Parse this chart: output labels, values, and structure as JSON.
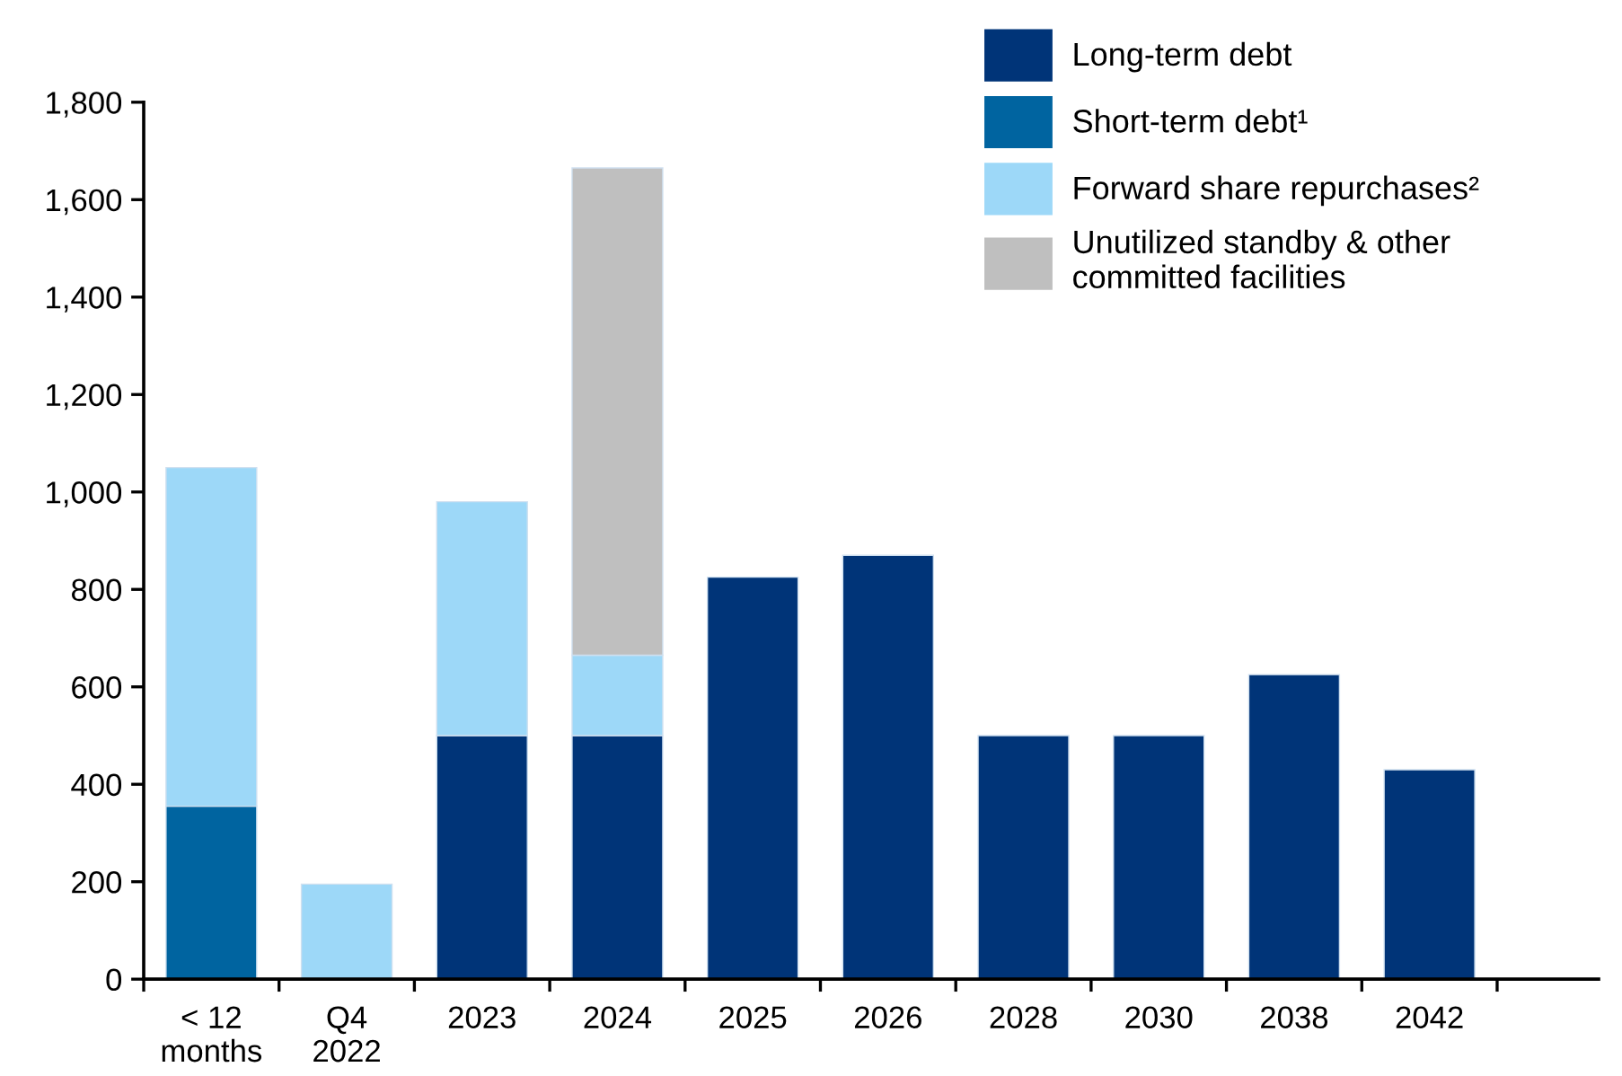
{
  "chart_data": {
    "type": "bar",
    "stacked": true,
    "categories": [
      "< 12\nmonths",
      "Q4\n2022",
      "2023",
      "2024",
      "2025",
      "2026",
      "2028",
      "2030",
      "2038",
      "2042"
    ],
    "series": [
      {
        "name": "Long-term debt",
        "color": "#003478",
        "values": [
          null,
          null,
          500,
          500,
          825,
          870,
          500,
          500,
          625,
          430
        ]
      },
      {
        "name": "Short-term debt¹",
        "color": "#0064a0",
        "values": [
          355,
          null,
          null,
          null,
          null,
          null,
          null,
          null,
          null,
          null
        ]
      },
      {
        "name": "Forward share repurchases²",
        "color": "#9dd8f8",
        "values": [
          695,
          195,
          480,
          165,
          null,
          null,
          null,
          null,
          null,
          null
        ]
      },
      {
        "name": "Unutilized standby & other\ncommitted facilities",
        "color": "#bfbfbf",
        "values": [
          null,
          null,
          null,
          1000,
          null,
          null,
          null,
          null,
          null,
          null
        ]
      }
    ],
    "ylim": [
      0,
      1800
    ],
    "yticks": [
      0,
      {
        "value": 200,
        "label": "200"
      },
      {
        "value": 400,
        "label": "400"
      },
      {
        "value": 600,
        "label": "600"
      },
      {
        "value": 800,
        "label": "800"
      },
      {
        "value": 1000,
        "label": "1,000"
      },
      {
        "value": 1200,
        "label": "1,200"
      },
      {
        "value": 1400,
        "label": "1,400"
      },
      {
        "value": 1600,
        "label": "1,600"
      },
      {
        "value": 1800,
        "label": "1,800"
      }
    ],
    "grid": false,
    "legend": "top right"
  }
}
